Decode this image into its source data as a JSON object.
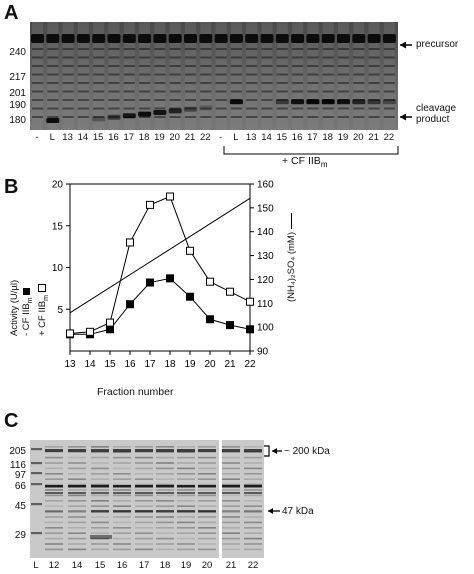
{
  "panel_a": {
    "letter": "A",
    "mw_markers": [
      "240",
      "217",
      "201",
      "190",
      "180"
    ],
    "lane_labels": [
      "-",
      "L",
      "13",
      "14",
      "15",
      "16",
      "17",
      "18",
      "19",
      "20",
      "21",
      "22",
      "-",
      "L",
      "13",
      "14",
      "15",
      "16",
      "17",
      "18",
      "19",
      "20",
      "21",
      "22"
    ],
    "precursor_label": "precursor",
    "cleavage_label_1": "cleavage",
    "cleavage_label_2": "product",
    "bracket_label": "+ CF IIB",
    "bracket_sub": "m"
  },
  "panel_b": {
    "letter": "B",
    "xlabel": "Fraction number",
    "ylabel_left_1": "Activity (U/µl)",
    "ylabel_left_2": "- CF IIB",
    "ylabel_left_2_sub": "m",
    "ylabel_left_3": "+ CF IIB",
    "ylabel_left_3_sub": "m",
    "ylabel_right": "(NH₄)₂SO₄ (mM)"
  },
  "chart_data": {
    "type": "line",
    "x": [
      13,
      14,
      15,
      16,
      17,
      18,
      19,
      20,
      21,
      22
    ],
    "xlim": [
      13,
      22
    ],
    "ylim_left": [
      0,
      20
    ],
    "ylim_right": [
      90,
      160
    ],
    "left_ticks": [
      5,
      10,
      15,
      20
    ],
    "right_ticks": [
      90,
      100,
      110,
      120,
      130,
      140,
      150,
      160
    ],
    "series": [
      {
        "name": "- CF IIBm",
        "marker": "filled-square",
        "axis": "left",
        "values": [
          2.0,
          2.0,
          2.6,
          5.6,
          8.2,
          8.7,
          6.5,
          3.8,
          3.1,
          2.6
        ]
      },
      {
        "name": "+ CF IIBm",
        "marker": "open-square",
        "axis": "left",
        "values": [
          2.1,
          2.3,
          3.4,
          13.0,
          17.5,
          18.5,
          12.0,
          8.3,
          7.1,
          5.9
        ]
      },
      {
        "name": "(NH4)2SO4",
        "marker": "none",
        "axis": "right",
        "x": [
          13,
          22
        ],
        "values": [
          106,
          154
        ]
      }
    ]
  },
  "panel_c": {
    "letter": "C",
    "mw_markers": [
      "205",
      "116",
      "97",
      "66",
      "45",
      "29"
    ],
    "lane_labels": [
      "L",
      "12",
      "14",
      "15",
      "16",
      "17",
      "18",
      "19",
      "20",
      "21",
      "22"
    ],
    "annotation_200": "~ 200 kDa",
    "annotation_47": "47 kDa"
  }
}
